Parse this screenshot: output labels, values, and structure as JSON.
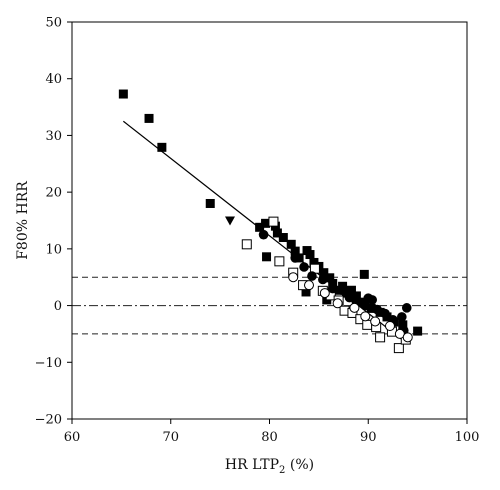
{
  "chart_data": {
    "type": "scatter",
    "xlabel": "HR LTP₂ (%)",
    "ylabel": "F80% HRR",
    "xlim": [
      60,
      100
    ],
    "ylim": [
      -20,
      50
    ],
    "xticks": [
      60,
      70,
      80,
      90,
      100
    ],
    "yticks": [
      -20,
      -10,
      0,
      10,
      20,
      30,
      40,
      50
    ],
    "grid": false,
    "legend": "none",
    "reference_lines": [
      {
        "y": 5,
        "style": "dashed"
      },
      {
        "y": 0,
        "style": "dashdot"
      },
      {
        "y": -5,
        "style": "dashed"
      }
    ],
    "fit_line": {
      "x": [
        65.2,
        94.0
      ],
      "y": [
        32.5,
        -6.8
      ]
    },
    "series": [
      {
        "marker": "filled-square",
        "points": [
          [
            65.2,
            37.3
          ],
          [
            67.8,
            33.0
          ],
          [
            69.1,
            27.9
          ],
          [
            74.0,
            18.0
          ],
          [
            79.0,
            13.8
          ],
          [
            79.6,
            14.5
          ],
          [
            80.6,
            14.0
          ],
          [
            80.8,
            12.8
          ],
          [
            81.4,
            12.0
          ],
          [
            82.2,
            10.8
          ],
          [
            82.6,
            9.6
          ],
          [
            83.0,
            8.4
          ],
          [
            83.8,
            9.7
          ],
          [
            84.1,
            9.0
          ],
          [
            84.5,
            7.6
          ],
          [
            85.0,
            6.9
          ],
          [
            85.5,
            5.8
          ],
          [
            86.1,
            4.9
          ],
          [
            86.4,
            3.9
          ],
          [
            86.8,
            2.7
          ],
          [
            87.4,
            3.4
          ],
          [
            87.8,
            2.2
          ],
          [
            88.3,
            2.7
          ],
          [
            88.8,
            1.7
          ],
          [
            89.6,
            5.5
          ],
          [
            89.4,
            0.6
          ],
          [
            90.3,
            -0.5
          ],
          [
            91.2,
            -1.2
          ],
          [
            91.9,
            -2.0
          ],
          [
            92.6,
            -2.9
          ],
          [
            93.5,
            -3.4
          ],
          [
            95.0,
            -4.5
          ],
          [
            79.7,
            8.6
          ],
          [
            83.7,
            2.4
          ],
          [
            85.8,
            1.0
          ]
        ]
      },
      {
        "marker": "open-square",
        "points": [
          [
            77.7,
            10.8
          ],
          [
            80.4,
            14.8
          ],
          [
            81.0,
            7.8
          ],
          [
            82.4,
            5.8
          ],
          [
            83.4,
            3.6
          ],
          [
            84.6,
            6.5
          ],
          [
            85.4,
            2.6
          ],
          [
            86.2,
            1.8
          ],
          [
            87.0,
            0.9
          ],
          [
            87.6,
            -0.9
          ],
          [
            88.4,
            -1.3
          ],
          [
            89.2,
            -2.4
          ],
          [
            89.9,
            -3.4
          ],
          [
            90.8,
            -3.8
          ],
          [
            91.2,
            -5.6
          ],
          [
            92.4,
            -4.6
          ],
          [
            93.1,
            -7.5
          ],
          [
            93.8,
            -6.0
          ]
        ]
      },
      {
        "marker": "filled-circle",
        "points": [
          [
            79.4,
            12.5
          ],
          [
            82.6,
            8.4
          ],
          [
            83.5,
            6.8
          ],
          [
            84.3,
            5.2
          ],
          [
            85.4,
            4.6
          ],
          [
            86.4,
            3.0
          ],
          [
            87.3,
            2.7
          ],
          [
            88.1,
            1.4
          ],
          [
            88.8,
            0.6
          ],
          [
            89.7,
            0.0
          ],
          [
            90.4,
            1.0
          ],
          [
            90.9,
            -0.7
          ],
          [
            91.7,
            -1.4
          ],
          [
            92.5,
            -2.5
          ],
          [
            93.4,
            -2.0
          ],
          [
            93.9,
            -0.4
          ],
          [
            93.6,
            -4.4
          ],
          [
            90.0,
            1.3
          ]
        ]
      },
      {
        "marker": "open-circle",
        "points": [
          [
            82.4,
            5.0
          ],
          [
            84.0,
            3.6
          ],
          [
            85.6,
            2.2
          ],
          [
            86.9,
            0.4
          ],
          [
            88.6,
            -0.4
          ],
          [
            89.7,
            -1.9
          ],
          [
            90.7,
            -2.8
          ],
          [
            92.2,
            -3.6
          ],
          [
            93.2,
            -5.0
          ],
          [
            94.0,
            -5.6
          ]
        ]
      },
      {
        "marker": "filled-triangle-down",
        "points": [
          [
            76.0,
            15.0
          ]
        ]
      }
    ]
  }
}
